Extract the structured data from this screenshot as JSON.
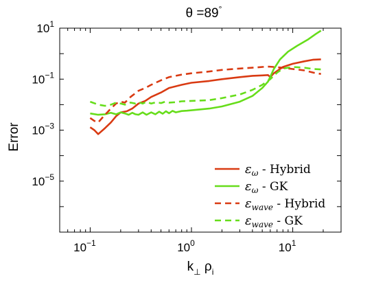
{
  "chart_data": {
    "type": "line",
    "title_prefix": "θ =89",
    "title_sup": "°",
    "xlabel_main": "k",
    "xlabel_sub1": "⊥",
    "xlabel_mid": " ρ",
    "xlabel_sub2": "i",
    "ylabel": "Error",
    "xscale": "log",
    "yscale": "log",
    "xlim": [
      0.05,
      30
    ],
    "ylim": [
      1e-07,
      10
    ],
    "grid": false,
    "legend_position": "lower-right",
    "x_ticks": [
      {
        "value": 0.1,
        "base": "10",
        "exp": "−1"
      },
      {
        "value": 1,
        "base": "10",
        "exp": "0"
      },
      {
        "value": 10,
        "base": "10",
        "exp": "1"
      }
    ],
    "y_ticks": [
      {
        "value": 10,
        "base": "10",
        "exp": "1"
      },
      {
        "value": 0.1,
        "base": "10",
        "exp": "−1"
      },
      {
        "value": 0.001,
        "base": "10",
        "exp": "−3"
      },
      {
        "value": 1e-05,
        "base": "10",
        "exp": "−5"
      }
    ],
    "series": [
      {
        "id": "eps-omega-hybrid",
        "legend_sub": "ω",
        "legend_rest": " - Hybrid",
        "color": "#d93a12",
        "dash": "solid",
        "points": [
          [
            0.1,
            0.0013
          ],
          [
            0.11,
            0.001
          ],
          [
            0.12,
            0.0007
          ],
          [
            0.14,
            0.0012
          ],
          [
            0.16,
            0.002
          ],
          [
            0.18,
            0.0035
          ],
          [
            0.2,
            0.005
          ],
          [
            0.23,
            0.0055
          ],
          [
            0.26,
            0.007
          ],
          [
            0.3,
            0.011
          ],
          [
            0.35,
            0.014
          ],
          [
            0.4,
            0.02
          ],
          [
            0.5,
            0.03
          ],
          [
            0.6,
            0.045
          ],
          [
            0.8,
            0.06
          ],
          [
            1,
            0.072
          ],
          [
            1.5,
            0.085
          ],
          [
            2,
            0.1
          ],
          [
            3,
            0.12
          ],
          [
            4,
            0.135
          ],
          [
            5,
            0.14
          ],
          [
            5.7,
            0.145
          ],
          [
            6,
            0.12
          ],
          [
            6.5,
            0.17
          ],
          [
            8,
            0.3
          ],
          [
            10,
            0.4
          ],
          [
            13,
            0.5
          ],
          [
            16,
            0.58
          ],
          [
            19,
            0.6
          ]
        ]
      },
      {
        "id": "eps-omega-gk",
        "legend_sub": "ω",
        "legend_rest": " - GK",
        "color": "#66dd1a",
        "dash": "solid",
        "points": [
          [
            0.1,
            0.0045
          ],
          [
            0.12,
            0.004
          ],
          [
            0.14,
            0.0042
          ],
          [
            0.16,
            0.0048
          ],
          [
            0.18,
            0.0042
          ],
          [
            0.2,
            0.005
          ],
          [
            0.22,
            0.0045
          ],
          [
            0.24,
            0.004
          ],
          [
            0.26,
            0.0048
          ],
          [
            0.28,
            0.0042
          ],
          [
            0.3,
            0.004
          ],
          [
            0.33,
            0.005
          ],
          [
            0.36,
            0.004
          ],
          [
            0.4,
            0.005
          ],
          [
            0.44,
            0.0042
          ],
          [
            0.48,
            0.0053
          ],
          [
            0.52,
            0.0044
          ],
          [
            0.56,
            0.0055
          ],
          [
            0.6,
            0.0046
          ],
          [
            0.65,
            0.0057
          ],
          [
            0.7,
            0.005
          ],
          [
            0.8,
            0.0056
          ],
          [
            0.9,
            0.0058
          ],
          [
            1,
            0.006
          ],
          [
            1.5,
            0.007
          ],
          [
            2,
            0.0085
          ],
          [
            3,
            0.013
          ],
          [
            4,
            0.022
          ],
          [
            5,
            0.045
          ],
          [
            5.7,
            0.08
          ],
          [
            6.5,
            0.25
          ],
          [
            7.5,
            0.6
          ],
          [
            9,
            1.2
          ],
          [
            11,
            2
          ],
          [
            14,
            3.5
          ],
          [
            17,
            6
          ],
          [
            19,
            8
          ]
        ]
      },
      {
        "id": "eps-wave-hybrid",
        "legend_sub": "wave",
        "legend_rest": " - Hybrid",
        "color": "#d93a12",
        "dash": "dashed",
        "points": [
          [
            0.1,
            0.003
          ],
          [
            0.11,
            0.0023
          ],
          [
            0.12,
            0.002
          ],
          [
            0.14,
            0.004
          ],
          [
            0.16,
            0.007
          ],
          [
            0.18,
            0.011
          ],
          [
            0.2,
            0.013
          ],
          [
            0.22,
            0.012
          ],
          [
            0.25,
            0.02
          ],
          [
            0.3,
            0.035
          ],
          [
            0.35,
            0.045
          ],
          [
            0.4,
            0.06
          ],
          [
            0.5,
            0.09
          ],
          [
            0.6,
            0.12
          ],
          [
            0.8,
            0.15
          ],
          [
            1,
            0.17
          ],
          [
            1.5,
            0.2
          ],
          [
            2,
            0.23
          ],
          [
            3,
            0.26
          ],
          [
            4,
            0.28
          ],
          [
            5,
            0.3
          ],
          [
            5.8,
            0.31
          ],
          [
            6.5,
            0.3
          ],
          [
            8,
            0.28
          ],
          [
            10,
            0.25
          ],
          [
            13,
            0.22
          ],
          [
            16,
            0.18
          ],
          [
            19,
            0.16
          ]
        ]
      },
      {
        "id": "eps-wave-gk",
        "legend_sub": "wave",
        "legend_rest": " - GK",
        "color": "#66dd1a",
        "dash": "dashed",
        "points": [
          [
            0.1,
            0.013
          ],
          [
            0.12,
            0.01
          ],
          [
            0.14,
            0.009
          ],
          [
            0.16,
            0.01
          ],
          [
            0.18,
            0.012
          ],
          [
            0.2,
            0.011
          ],
          [
            0.22,
            0.01
          ],
          [
            0.25,
            0.012
          ],
          [
            0.28,
            0.011
          ],
          [
            0.3,
            0.0125
          ],
          [
            0.33,
            0.011
          ],
          [
            0.36,
            0.013
          ],
          [
            0.4,
            0.011
          ],
          [
            0.45,
            0.0125
          ],
          [
            0.5,
            0.0115
          ],
          [
            0.55,
            0.013
          ],
          [
            0.6,
            0.012
          ],
          [
            0.7,
            0.0125
          ],
          [
            0.8,
            0.0135
          ],
          [
            1,
            0.014
          ],
          [
            1.5,
            0.015
          ],
          [
            2,
            0.018
          ],
          [
            3,
            0.025
          ],
          [
            4,
            0.038
          ],
          [
            5,
            0.06
          ],
          [
            6,
            0.1
          ],
          [
            7,
            0.18
          ],
          [
            8,
            0.26
          ],
          [
            10,
            0.3
          ],
          [
            13,
            0.28
          ],
          [
            16,
            0.25
          ],
          [
            19,
            0.24
          ]
        ]
      }
    ]
  }
}
